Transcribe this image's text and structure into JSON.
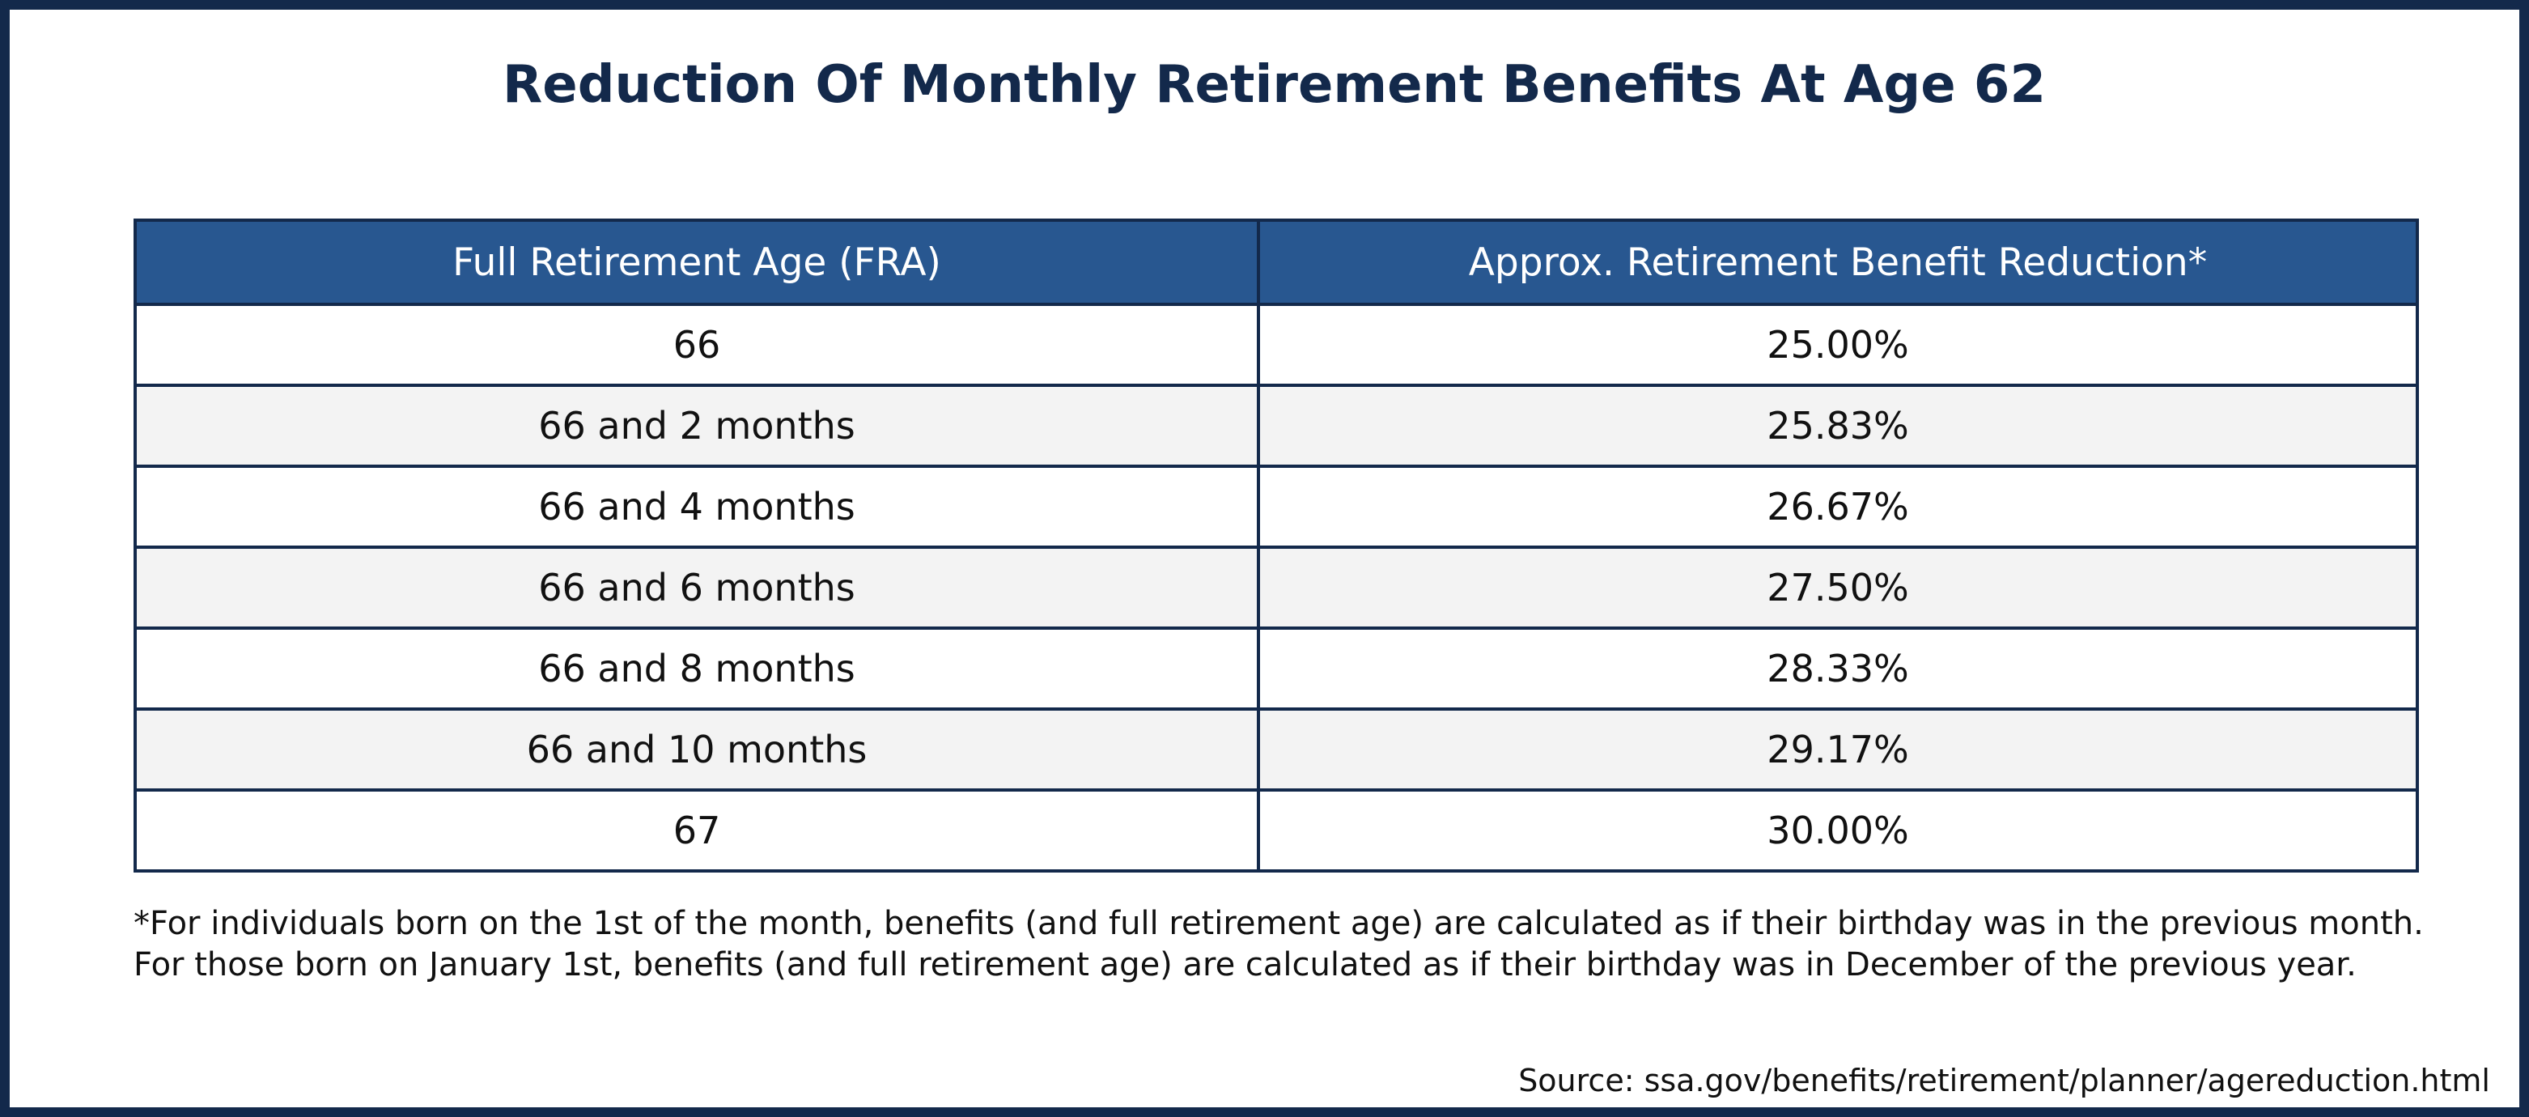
{
  "chart_data": {
    "type": "table",
    "title": "Reduction Of Monthly Retirement Benefits At Age 62",
    "columns": [
      "Full Retirement Age (FRA)",
      "Approx. Retirement Benefit Reduction*"
    ],
    "rows": [
      [
        "66",
        "25.00%"
      ],
      [
        "66 and 2 months",
        "25.83%"
      ],
      [
        "66 and 4 months",
        "26.67%"
      ],
      [
        "66 and 6 months",
        "27.50%"
      ],
      [
        "66 and 8 months",
        "28.33%"
      ],
      [
        "66 and 10 months",
        "29.17%"
      ],
      [
        "67",
        "30.00%"
      ]
    ],
    "footnote": "*For individuals born on the 1st of the month, benefits (and full retirement age) are calculated as if their birthday was in the previous month. For those born on January 1st, benefits (and full retirement age) are calculated as if their birthday was in December of the previous year.",
    "source": "Source: ssa.gov/benefits/retirement/planner/agereduction.html"
  },
  "colors": {
    "frame": "#13294b",
    "title": "#13294b",
    "header_background": "#285790",
    "header_text": "#ffffff",
    "row_alt_background": "#f3f3f3",
    "border": "#13294b"
  }
}
